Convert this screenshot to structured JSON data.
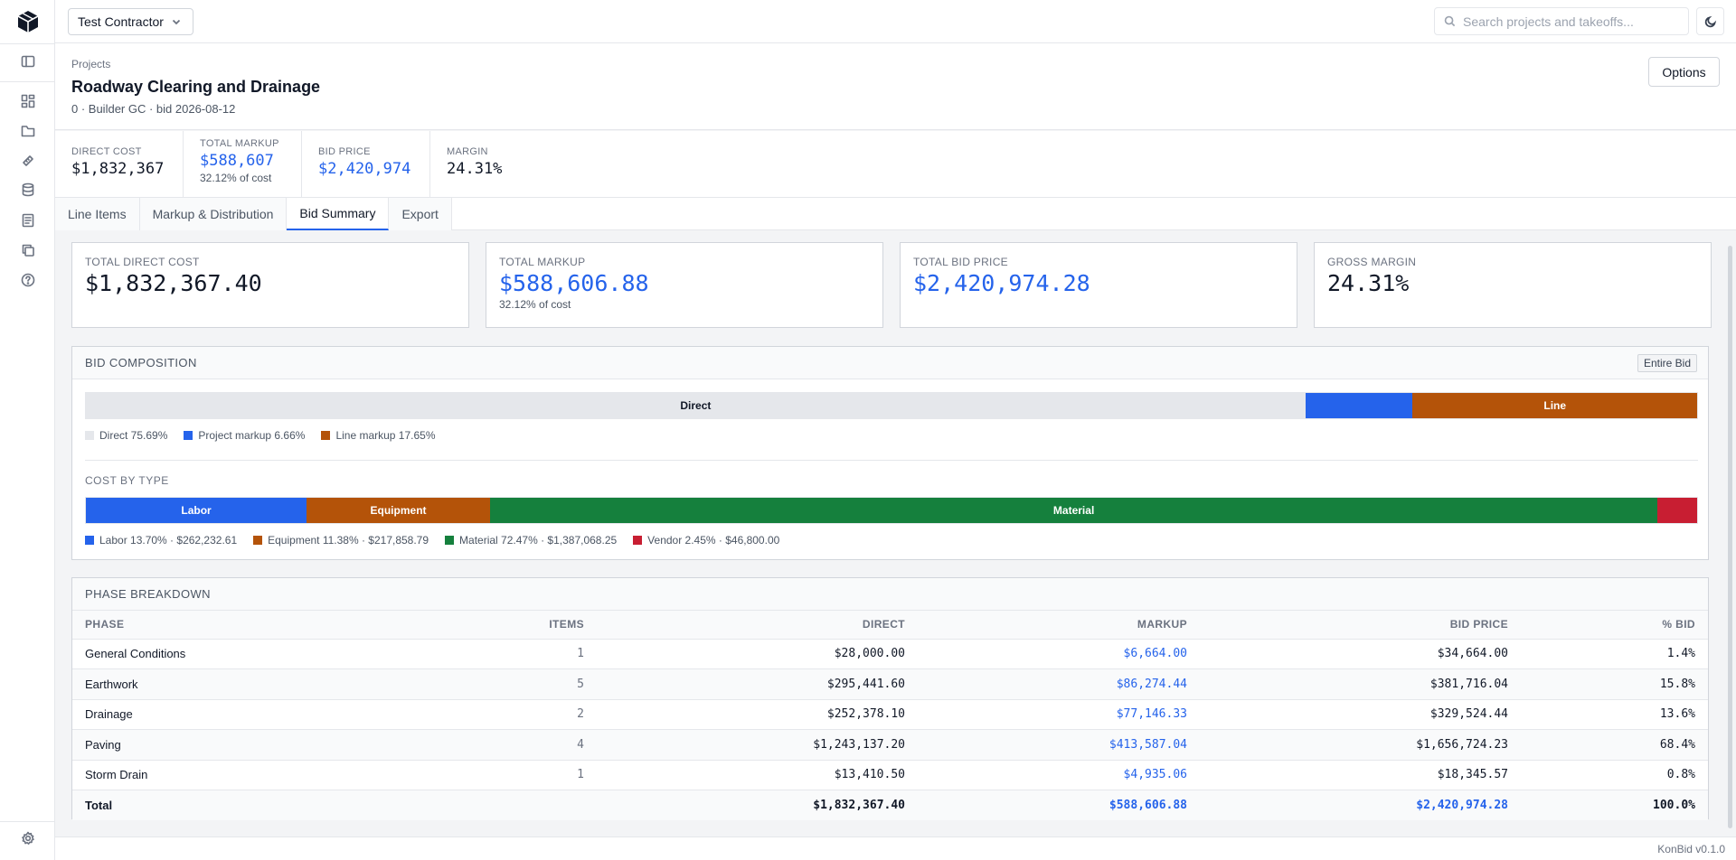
{
  "topbar": {
    "contractor": "Test Contractor",
    "search_placeholder": "Search projects and takeoffs..."
  },
  "project": {
    "breadcrumb": "Projects",
    "title": "Roadway Clearing and Drainage",
    "meta": "0 · Builder GC · bid 2026-08-12",
    "options_label": "Options"
  },
  "stats": [
    {
      "label": "DIRECT COST",
      "value": "$1,832,367",
      "sub": ""
    },
    {
      "label": "TOTAL MARKUP",
      "value": "$588,607",
      "sub": "32.12% of cost"
    },
    {
      "label": "BID PRICE",
      "value": "$2,420,974",
      "sub": ""
    },
    {
      "label": "MARGIN",
      "value": "24.31%",
      "sub": ""
    }
  ],
  "tabs": [
    "Line Items",
    "Markup & Distribution",
    "Bid Summary",
    "Export"
  ],
  "active_tab": "Bid Summary",
  "kpis": [
    {
      "label": "TOTAL DIRECT COST",
      "value": "$1,832,367.40",
      "sub": ""
    },
    {
      "label": "TOTAL MARKUP",
      "value": "$588,606.88",
      "sub": "32.12% of cost"
    },
    {
      "label": "TOTAL BID PRICE",
      "value": "$2,420,974.28",
      "sub": ""
    },
    {
      "label": "GROSS MARGIN",
      "value": "24.31%",
      "sub": ""
    }
  ],
  "composition": {
    "title": "BID COMPOSITION",
    "scope_label": "Entire Bid",
    "segments": [
      {
        "label": "Direct",
        "pct": 75.69,
        "color": "#e5e7eb",
        "text_color": "#111827"
      },
      {
        "label": "",
        "pct": 6.66,
        "color": "#2563eb",
        "text_color": "#ffffff"
      },
      {
        "label": "Line",
        "pct": 17.65,
        "color": "#b45309",
        "text_color": "#ffffff"
      }
    ],
    "legend": [
      {
        "text": "Direct 75.69%",
        "color": "#e5e7eb"
      },
      {
        "text": "Project markup 6.66%",
        "color": "#2563eb"
      },
      {
        "text": "Line markup 17.65%",
        "color": "#b45309"
      }
    ]
  },
  "cost_by_type": {
    "title": "COST BY TYPE",
    "segments": [
      {
        "label": "Labor",
        "pct": 13.7,
        "color": "#2563eb"
      },
      {
        "label": "Equipment",
        "pct": 11.38,
        "color": "#b45309"
      },
      {
        "label": "Material",
        "pct": 72.47,
        "color": "#15803d"
      },
      {
        "label": "",
        "pct": 2.45,
        "color": "#c81e32"
      }
    ],
    "legend": [
      {
        "text": "Labor 13.70% · $262,232.61",
        "color": "#2563eb"
      },
      {
        "text": "Equipment 11.38% · $217,858.79",
        "color": "#b45309"
      },
      {
        "text": "Material 72.47% · $1,387,068.25",
        "color": "#15803d"
      },
      {
        "text": "Vendor 2.45% · $46,800.00",
        "color": "#c81e32"
      }
    ]
  },
  "phases": {
    "title": "PHASE BREAKDOWN",
    "columns": [
      "PHASE",
      "ITEMS",
      "DIRECT",
      "MARKUP",
      "BID PRICE",
      "% BID"
    ],
    "rows": [
      {
        "phase": "General Conditions",
        "items": "1",
        "direct": "$28,000.00",
        "markup": "$6,664.00",
        "bid": "$34,664.00",
        "pct": "1.4%"
      },
      {
        "phase": "Earthwork",
        "items": "5",
        "direct": "$295,441.60",
        "markup": "$86,274.44",
        "bid": "$381,716.04",
        "pct": "15.8%"
      },
      {
        "phase": "Drainage",
        "items": "2",
        "direct": "$252,378.10",
        "markup": "$77,146.33",
        "bid": "$329,524.44",
        "pct": "13.6%"
      },
      {
        "phase": "Paving",
        "items": "4",
        "direct": "$1,243,137.20",
        "markup": "$413,587.04",
        "bid": "$1,656,724.23",
        "pct": "68.4%"
      },
      {
        "phase": "Storm Drain",
        "items": "1",
        "direct": "$13,410.50",
        "markup": "$4,935.06",
        "bid": "$18,345.57",
        "pct": "0.8%"
      }
    ],
    "total": {
      "phase": "Total",
      "items": "",
      "direct": "$1,832,367.40",
      "markup": "$588,606.88",
      "bid": "$2,420,974.28",
      "pct": "100.0%"
    }
  },
  "footer": {
    "version": "KonBid v0.1.0"
  }
}
